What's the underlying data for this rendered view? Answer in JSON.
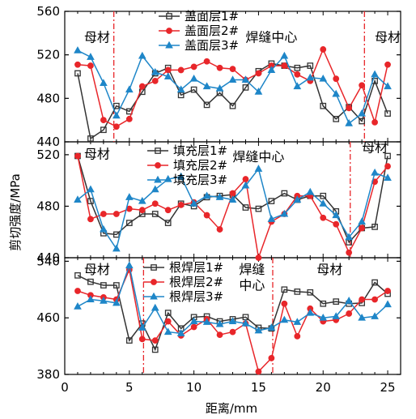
{
  "chart_data": {
    "type": "line",
    "ylabel": "剪切强度/MPa",
    "xlabel": "距离/mm",
    "xlim": [
      0,
      26
    ],
    "xticks": [
      0,
      5,
      10,
      15,
      20,
      25
    ],
    "x": [
      1,
      2,
      3,
      4,
      5,
      6,
      7,
      8,
      9,
      10,
      11,
      12,
      13,
      14,
      15,
      16,
      17,
      18,
      19,
      20,
      21,
      22,
      23,
      24,
      25
    ],
    "colors": {
      "s1": "#333333",
      "s2": "#e8262a",
      "s3": "#1e86c8"
    },
    "panels": [
      {
        "ylim": [
          440,
          560
        ],
        "yticks": [
          440,
          480,
          520,
          560
        ],
        "annotations": [
          {
            "text": "母材",
            "x": 2.5,
            "y": 532
          },
          {
            "text": "焊缝中心",
            "x": 16,
            "y": 532
          },
          {
            "text": "母材",
            "x": 25,
            "y": 532
          }
        ],
        "vlines": [
          3.8,
          23.2
        ],
        "series": [
          {
            "name": "盖面层1#",
            "values": [
              503,
              443,
              451,
              473,
              468,
              486,
              503,
              508,
              483,
              488,
              474,
              485,
              473,
              490,
              505,
              512,
              510,
              508,
              510,
              473,
              461,
              472,
              459,
              496,
              466
            ]
          },
          {
            "name": "盖面层2#",
            "values": [
              511,
              510,
              460,
              454,
              461,
              491,
              496,
              506,
              506,
              509,
              514,
              508,
              507,
              497,
              503,
              510,
              510,
              502,
              496,
              525,
              498,
              471,
              492,
              458,
              511
            ]
          },
          {
            "name": "盖面层3#",
            "values": [
              524,
              518,
              494,
              464,
              488,
              519,
              504,
              500,
              488,
              498,
              491,
              489,
              497,
              497,
              486,
              506,
              519,
              491,
              499,
              498,
              484,
              457,
              466,
              502,
              491
            ]
          }
        ]
      },
      {
        "ylim": [
          440,
          530
        ],
        "yticks": [
          440,
          480,
          520
        ],
        "annotations": [
          {
            "text": "母材",
            "x": 2.5,
            "y": 517
          },
          {
            "text": "焊缝中心",
            "x": 15,
            "y": 515
          },
          {
            "text": "母材",
            "x": 24,
            "y": 522
          }
        ],
        "vlines": [
          22.1
        ],
        "series": [
          {
            "name": "填充层1#",
            "values": [
              519,
              484,
              459,
              458,
              467,
              474,
              474,
              467,
              482,
              480,
              487,
              488,
              489,
              479,
              478,
              484,
              490,
              485,
              488,
              488,
              476,
              452,
              463,
              464,
              519
            ]
          },
          {
            "name": "填充层2#",
            "values": [
              519,
              470,
              474,
              474,
              478,
              477,
              482,
              477,
              481,
              483,
              473,
              462,
              490,
              501,
              440,
              468,
              474,
              488,
              488,
              471,
              466,
              444,
              463,
              499,
              511
            ]
          },
          {
            "name": "填充层3#",
            "values": [
              485,
              493,
              462,
              447,
              487,
              484,
              493,
              501,
              503,
              482,
              488,
              487,
              485,
              496,
              509,
              470,
              474,
              485,
              491,
              482,
              473,
              456,
              468,
              506,
              502
            ]
          }
        ]
      },
      {
        "ylim": [
          380,
          545
        ],
        "yticks": [
          380,
          460,
          540
        ],
        "annotations": [
          {
            "text": "母材",
            "x": 2.5,
            "y": 522
          },
          {
            "text": "焊缝",
            "x": 14.5,
            "y": 522
          },
          {
            "text": "中心",
            "x": 14.5,
            "y": 500
          },
          {
            "text": "母材",
            "x": 20.5,
            "y": 522
          }
        ],
        "vlines": [
          6.1,
          16.1
        ],
        "series": [
          {
            "name": "根焊层1#",
            "values": [
              520,
              511,
              506,
              506,
              428,
              452,
              415,
              467,
              445,
              461,
              462,
              455,
              458,
              461,
              446,
              445,
              500,
              497,
              496,
              480,
              483,
              480,
              481,
              510,
              494
            ]
          },
          {
            "name": "根焊层2#",
            "values": [
              498,
              492,
              489,
              486,
              528,
              430,
              428,
              455,
              435,
              447,
              458,
              436,
              440,
              452,
              384,
              403,
              480,
              434,
              473,
              455,
              457,
              466,
              486,
              486,
              498
            ]
          },
          {
            "name": "根焊层3#",
            "values": [
              476,
              486,
              484,
              481,
              534,
              446,
              474,
              440,
              438,
              455,
              454,
              451,
              455,
              452,
              442,
              446,
              457,
              454,
              467,
              460,
              462,
              484,
              460,
              462,
              479
            ]
          }
        ]
      }
    ]
  }
}
